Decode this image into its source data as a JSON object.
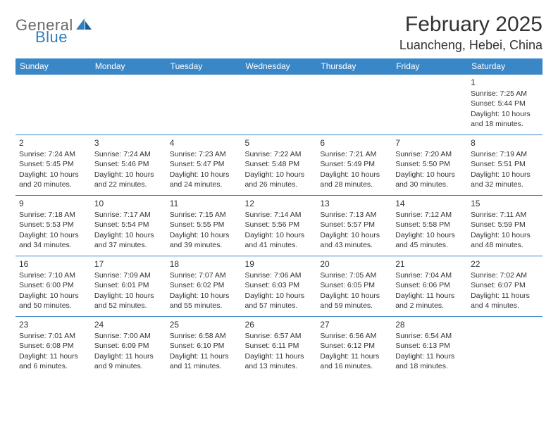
{
  "logo": {
    "text1": "General",
    "text2": "Blue"
  },
  "title": "February 2025",
  "location": "Luancheng, Hebei, China",
  "colors": {
    "header_bg": "#3a87c8",
    "header_text": "#ffffff",
    "rule": "#3a87c8",
    "body_text": "#333333",
    "logo_gray": "#6a6a6a",
    "logo_blue": "#2f7fc2"
  },
  "day_names": [
    "Sunday",
    "Monday",
    "Tuesday",
    "Wednesday",
    "Thursday",
    "Friday",
    "Saturday"
  ],
  "weeks": [
    [
      null,
      null,
      null,
      null,
      null,
      null,
      {
        "n": "1",
        "sr": "Sunrise: 7:25 AM",
        "ss": "Sunset: 5:44 PM",
        "dl1": "Daylight: 10 hours",
        "dl2": "and 18 minutes."
      }
    ],
    [
      {
        "n": "2",
        "sr": "Sunrise: 7:24 AM",
        "ss": "Sunset: 5:45 PM",
        "dl1": "Daylight: 10 hours",
        "dl2": "and 20 minutes."
      },
      {
        "n": "3",
        "sr": "Sunrise: 7:24 AM",
        "ss": "Sunset: 5:46 PM",
        "dl1": "Daylight: 10 hours",
        "dl2": "and 22 minutes."
      },
      {
        "n": "4",
        "sr": "Sunrise: 7:23 AM",
        "ss": "Sunset: 5:47 PM",
        "dl1": "Daylight: 10 hours",
        "dl2": "and 24 minutes."
      },
      {
        "n": "5",
        "sr": "Sunrise: 7:22 AM",
        "ss": "Sunset: 5:48 PM",
        "dl1": "Daylight: 10 hours",
        "dl2": "and 26 minutes."
      },
      {
        "n": "6",
        "sr": "Sunrise: 7:21 AM",
        "ss": "Sunset: 5:49 PM",
        "dl1": "Daylight: 10 hours",
        "dl2": "and 28 minutes."
      },
      {
        "n": "7",
        "sr": "Sunrise: 7:20 AM",
        "ss": "Sunset: 5:50 PM",
        "dl1": "Daylight: 10 hours",
        "dl2": "and 30 minutes."
      },
      {
        "n": "8",
        "sr": "Sunrise: 7:19 AM",
        "ss": "Sunset: 5:51 PM",
        "dl1": "Daylight: 10 hours",
        "dl2": "and 32 minutes."
      }
    ],
    [
      {
        "n": "9",
        "sr": "Sunrise: 7:18 AM",
        "ss": "Sunset: 5:53 PM",
        "dl1": "Daylight: 10 hours",
        "dl2": "and 34 minutes."
      },
      {
        "n": "10",
        "sr": "Sunrise: 7:17 AM",
        "ss": "Sunset: 5:54 PM",
        "dl1": "Daylight: 10 hours",
        "dl2": "and 37 minutes."
      },
      {
        "n": "11",
        "sr": "Sunrise: 7:15 AM",
        "ss": "Sunset: 5:55 PM",
        "dl1": "Daylight: 10 hours",
        "dl2": "and 39 minutes."
      },
      {
        "n": "12",
        "sr": "Sunrise: 7:14 AM",
        "ss": "Sunset: 5:56 PM",
        "dl1": "Daylight: 10 hours",
        "dl2": "and 41 minutes."
      },
      {
        "n": "13",
        "sr": "Sunrise: 7:13 AM",
        "ss": "Sunset: 5:57 PM",
        "dl1": "Daylight: 10 hours",
        "dl2": "and 43 minutes."
      },
      {
        "n": "14",
        "sr": "Sunrise: 7:12 AM",
        "ss": "Sunset: 5:58 PM",
        "dl1": "Daylight: 10 hours",
        "dl2": "and 45 minutes."
      },
      {
        "n": "15",
        "sr": "Sunrise: 7:11 AM",
        "ss": "Sunset: 5:59 PM",
        "dl1": "Daylight: 10 hours",
        "dl2": "and 48 minutes."
      }
    ],
    [
      {
        "n": "16",
        "sr": "Sunrise: 7:10 AM",
        "ss": "Sunset: 6:00 PM",
        "dl1": "Daylight: 10 hours",
        "dl2": "and 50 minutes."
      },
      {
        "n": "17",
        "sr": "Sunrise: 7:09 AM",
        "ss": "Sunset: 6:01 PM",
        "dl1": "Daylight: 10 hours",
        "dl2": "and 52 minutes."
      },
      {
        "n": "18",
        "sr": "Sunrise: 7:07 AM",
        "ss": "Sunset: 6:02 PM",
        "dl1": "Daylight: 10 hours",
        "dl2": "and 55 minutes."
      },
      {
        "n": "19",
        "sr": "Sunrise: 7:06 AM",
        "ss": "Sunset: 6:03 PM",
        "dl1": "Daylight: 10 hours",
        "dl2": "and 57 minutes."
      },
      {
        "n": "20",
        "sr": "Sunrise: 7:05 AM",
        "ss": "Sunset: 6:05 PM",
        "dl1": "Daylight: 10 hours",
        "dl2": "and 59 minutes."
      },
      {
        "n": "21",
        "sr": "Sunrise: 7:04 AM",
        "ss": "Sunset: 6:06 PM",
        "dl1": "Daylight: 11 hours",
        "dl2": "and 2 minutes."
      },
      {
        "n": "22",
        "sr": "Sunrise: 7:02 AM",
        "ss": "Sunset: 6:07 PM",
        "dl1": "Daylight: 11 hours",
        "dl2": "and 4 minutes."
      }
    ],
    [
      {
        "n": "23",
        "sr": "Sunrise: 7:01 AM",
        "ss": "Sunset: 6:08 PM",
        "dl1": "Daylight: 11 hours",
        "dl2": "and 6 minutes."
      },
      {
        "n": "24",
        "sr": "Sunrise: 7:00 AM",
        "ss": "Sunset: 6:09 PM",
        "dl1": "Daylight: 11 hours",
        "dl2": "and 9 minutes."
      },
      {
        "n": "25",
        "sr": "Sunrise: 6:58 AM",
        "ss": "Sunset: 6:10 PM",
        "dl1": "Daylight: 11 hours",
        "dl2": "and 11 minutes."
      },
      {
        "n": "26",
        "sr": "Sunrise: 6:57 AM",
        "ss": "Sunset: 6:11 PM",
        "dl1": "Daylight: 11 hours",
        "dl2": "and 13 minutes."
      },
      {
        "n": "27",
        "sr": "Sunrise: 6:56 AM",
        "ss": "Sunset: 6:12 PM",
        "dl1": "Daylight: 11 hours",
        "dl2": "and 16 minutes."
      },
      {
        "n": "28",
        "sr": "Sunrise: 6:54 AM",
        "ss": "Sunset: 6:13 PM",
        "dl1": "Daylight: 11 hours",
        "dl2": "and 18 minutes."
      },
      null
    ]
  ]
}
